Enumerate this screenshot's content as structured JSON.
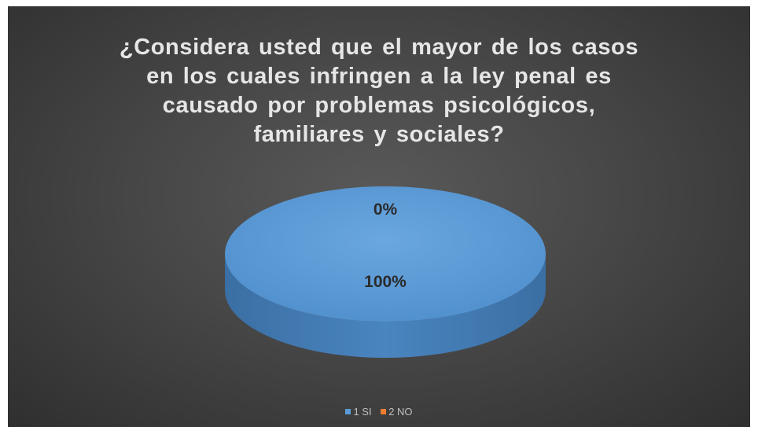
{
  "chart_data": {
    "type": "pie",
    "title_lines": [
      "¿Considera usted que el mayor de los casos",
      "en los cuales infringen a la ley penal es",
      "causado por problemas psicológicos,",
      "familiares y sociales?"
    ],
    "categories": [
      "1 SI",
      "2 NO"
    ],
    "values": [
      100,
      0
    ],
    "data_labels": [
      "100%",
      "0%"
    ],
    "colors": [
      "#5b9bd5",
      "#ed7d31"
    ],
    "legend_position": "bottom",
    "style": "3d"
  }
}
